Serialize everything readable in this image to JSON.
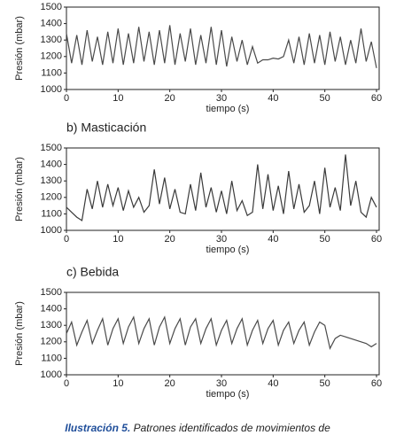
{
  "chart_data": [
    {
      "type": "line",
      "x_label": "tiempo (s)",
      "y_label": "Presión (mbar)",
      "x": [
        0,
        1,
        2,
        3,
        4,
        5,
        6,
        7,
        8,
        9,
        10,
        11,
        12,
        13,
        14,
        15,
        16,
        17,
        18,
        19,
        20,
        21,
        22,
        23,
        24,
        25,
        26,
        27,
        28,
        29,
        30,
        31,
        32,
        33,
        34,
        35,
        36,
        37,
        38,
        39,
        40,
        41,
        42,
        43,
        44,
        45,
        46,
        47,
        48,
        49,
        50,
        51,
        52,
        53,
        54,
        55,
        56,
        57,
        58,
        59,
        60
      ],
      "series": [
        {
          "color": "#4a4a4a",
          "values": [
            1340,
            1160,
            1330,
            1150,
            1360,
            1170,
            1320,
            1150,
            1350,
            1160,
            1370,
            1150,
            1340,
            1160,
            1380,
            1170,
            1350,
            1150,
            1360,
            1160,
            1390,
            1150,
            1340,
            1170,
            1370,
            1150,
            1330,
            1160,
            1380,
            1150,
            1360,
            1140,
            1320,
            1170,
            1300,
            1150,
            1260,
            1160,
            1180,
            1180,
            1190,
            1185,
            1200,
            1300,
            1160,
            1320,
            1150,
            1340,
            1160,
            1330,
            1150,
            1350,
            1170,
            1320,
            1150,
            1300,
            1160,
            1370,
            1170,
            1290,
            1130
          ]
        }
      ],
      "xlim": [
        0,
        60
      ],
      "ylim": [
        1000,
        1500
      ],
      "xticks": [
        0,
        10,
        20,
        30,
        40,
        50,
        60
      ],
      "yticks": [
        1000,
        1100,
        1200,
        1300,
        1400,
        1500
      ]
    },
    {
      "type": "line",
      "title": "b) Masticación",
      "x_label": "tiempo (s)",
      "y_label": "Presión (mbar)",
      "x": [
        0,
        1,
        2,
        3,
        4,
        5,
        6,
        7,
        8,
        9,
        10,
        11,
        12,
        13,
        14,
        15,
        16,
        17,
        18,
        19,
        20,
        21,
        22,
        23,
        24,
        25,
        26,
        27,
        28,
        29,
        30,
        31,
        32,
        33,
        34,
        35,
        36,
        37,
        38,
        39,
        40,
        41,
        42,
        43,
        44,
        45,
        46,
        47,
        48,
        49,
        50,
        51,
        52,
        53,
        54,
        55,
        56,
        57,
        58,
        59,
        60
      ],
      "series": [
        {
          "color": "#3a3a3a",
          "values": [
            1140,
            1110,
            1080,
            1060,
            1250,
            1130,
            1300,
            1140,
            1280,
            1150,
            1260,
            1120,
            1240,
            1140,
            1200,
            1110,
            1150,
            1370,
            1160,
            1320,
            1130,
            1250,
            1110,
            1100,
            1280,
            1120,
            1350,
            1140,
            1260,
            1110,
            1240,
            1100,
            1300,
            1120,
            1180,
            1090,
            1110,
            1400,
            1130,
            1340,
            1120,
            1270,
            1100,
            1360,
            1130,
            1280,
            1110,
            1150,
            1300,
            1100,
            1380,
            1140,
            1260,
            1120,
            1460,
            1150,
            1300,
            1110,
            1080,
            1200,
            1140
          ]
        }
      ],
      "xlim": [
        0,
        60
      ],
      "ylim": [
        1000,
        1500
      ],
      "xticks": [
        0,
        10,
        20,
        30,
        40,
        50,
        60
      ],
      "yticks": [
        1000,
        1100,
        1200,
        1300,
        1400,
        1500
      ]
    },
    {
      "type": "line",
      "title": "c) Bebida",
      "x_label": "tiempo (s)",
      "y_label": "Presión (mbar)",
      "x": [
        0,
        1,
        2,
        3,
        4,
        5,
        6,
        7,
        8,
        9,
        10,
        11,
        12,
        13,
        14,
        15,
        16,
        17,
        18,
        19,
        20,
        21,
        22,
        23,
        24,
        25,
        26,
        27,
        28,
        29,
        30,
        31,
        32,
        33,
        34,
        35,
        36,
        37,
        38,
        39,
        40,
        41,
        42,
        43,
        44,
        45,
        46,
        47,
        48,
        49,
        50,
        51,
        52,
        53,
        54,
        55,
        56,
        57,
        58,
        59,
        60
      ],
      "series": [
        {
          "color": "#4a4a4a",
          "values": [
            1250,
            1320,
            1180,
            1260,
            1330,
            1190,
            1270,
            1340,
            1180,
            1280,
            1340,
            1190,
            1290,
            1350,
            1190,
            1280,
            1340,
            1180,
            1290,
            1350,
            1190,
            1280,
            1340,
            1180,
            1290,
            1340,
            1190,
            1280,
            1340,
            1180,
            1270,
            1330,
            1190,
            1280,
            1340,
            1180,
            1270,
            1330,
            1190,
            1280,
            1330,
            1180,
            1270,
            1320,
            1190,
            1270,
            1320,
            1180,
            1260,
            1320,
            1300,
            1160,
            1220,
            1240,
            1230,
            1220,
            1210,
            1200,
            1190,
            1170,
            1190
          ]
        }
      ],
      "xlim": [
        0,
        60
      ],
      "ylim": [
        1000,
        1500
      ],
      "xticks": [
        0,
        10,
        20,
        30,
        40,
        50,
        60
      ],
      "yticks": [
        1000,
        1100,
        1200,
        1300,
        1400,
        1500
      ]
    }
  ],
  "caption": {
    "label": "Ilustración 5.",
    "text": "Patrones identificados de movimientos de"
  }
}
